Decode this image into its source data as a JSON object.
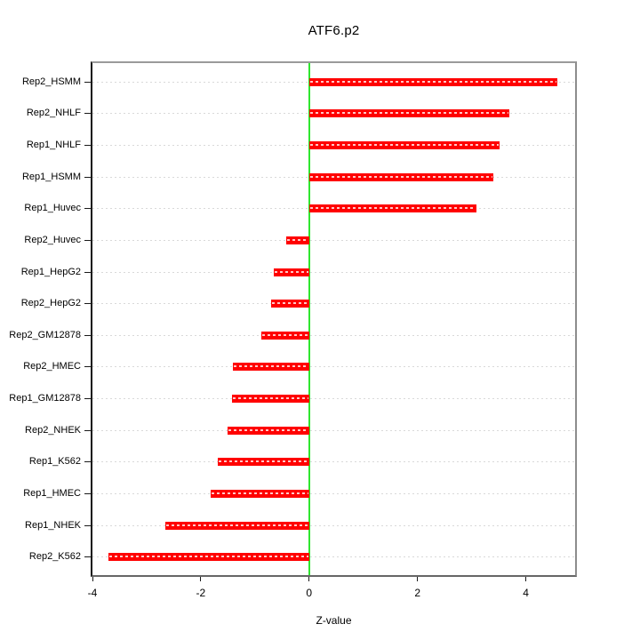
{
  "title": "ATF6.p2",
  "chart_data": {
    "type": "bar",
    "orientation": "horizontal",
    "title": "ATF6.p2",
    "xlabel": "Z-value",
    "categories": [
      "Rep2_HSMM",
      "Rep2_NHLF",
      "Rep1_NHLF",
      "Rep1_HSMM",
      "Rep1_Huvec",
      "Rep2_Huvec",
      "Rep1_HepG2",
      "Rep2_HepG2",
      "Rep2_GM12878",
      "Rep2_HMEC",
      "Rep1_GM12878",
      "Rep2_NHEK",
      "Rep1_K562",
      "Rep1_HMEC",
      "Rep1_NHEK",
      "Rep2_K562"
    ],
    "values": [
      4.58,
      3.7,
      3.51,
      3.4,
      3.09,
      -0.43,
      -0.66,
      -0.7,
      -0.89,
      -1.4,
      -1.43,
      -1.51,
      -1.69,
      -1.82,
      -2.66,
      -3.7
    ],
    "x_ticks": [
      -4,
      -2,
      0,
      2,
      4
    ],
    "xlim": [
      -4.0,
      4.91
    ],
    "grid": "dotted horizontal line per category",
    "legend": "none",
    "zero_line_at": 0,
    "colors": {
      "bar": "#FF0000",
      "zero_line": "#2FE62F",
      "grid": "#D9D9D9",
      "box_border": "#8C8C8C",
      "axis": "#000000",
      "text": "#000000",
      "background": "#FFFFFF"
    }
  }
}
